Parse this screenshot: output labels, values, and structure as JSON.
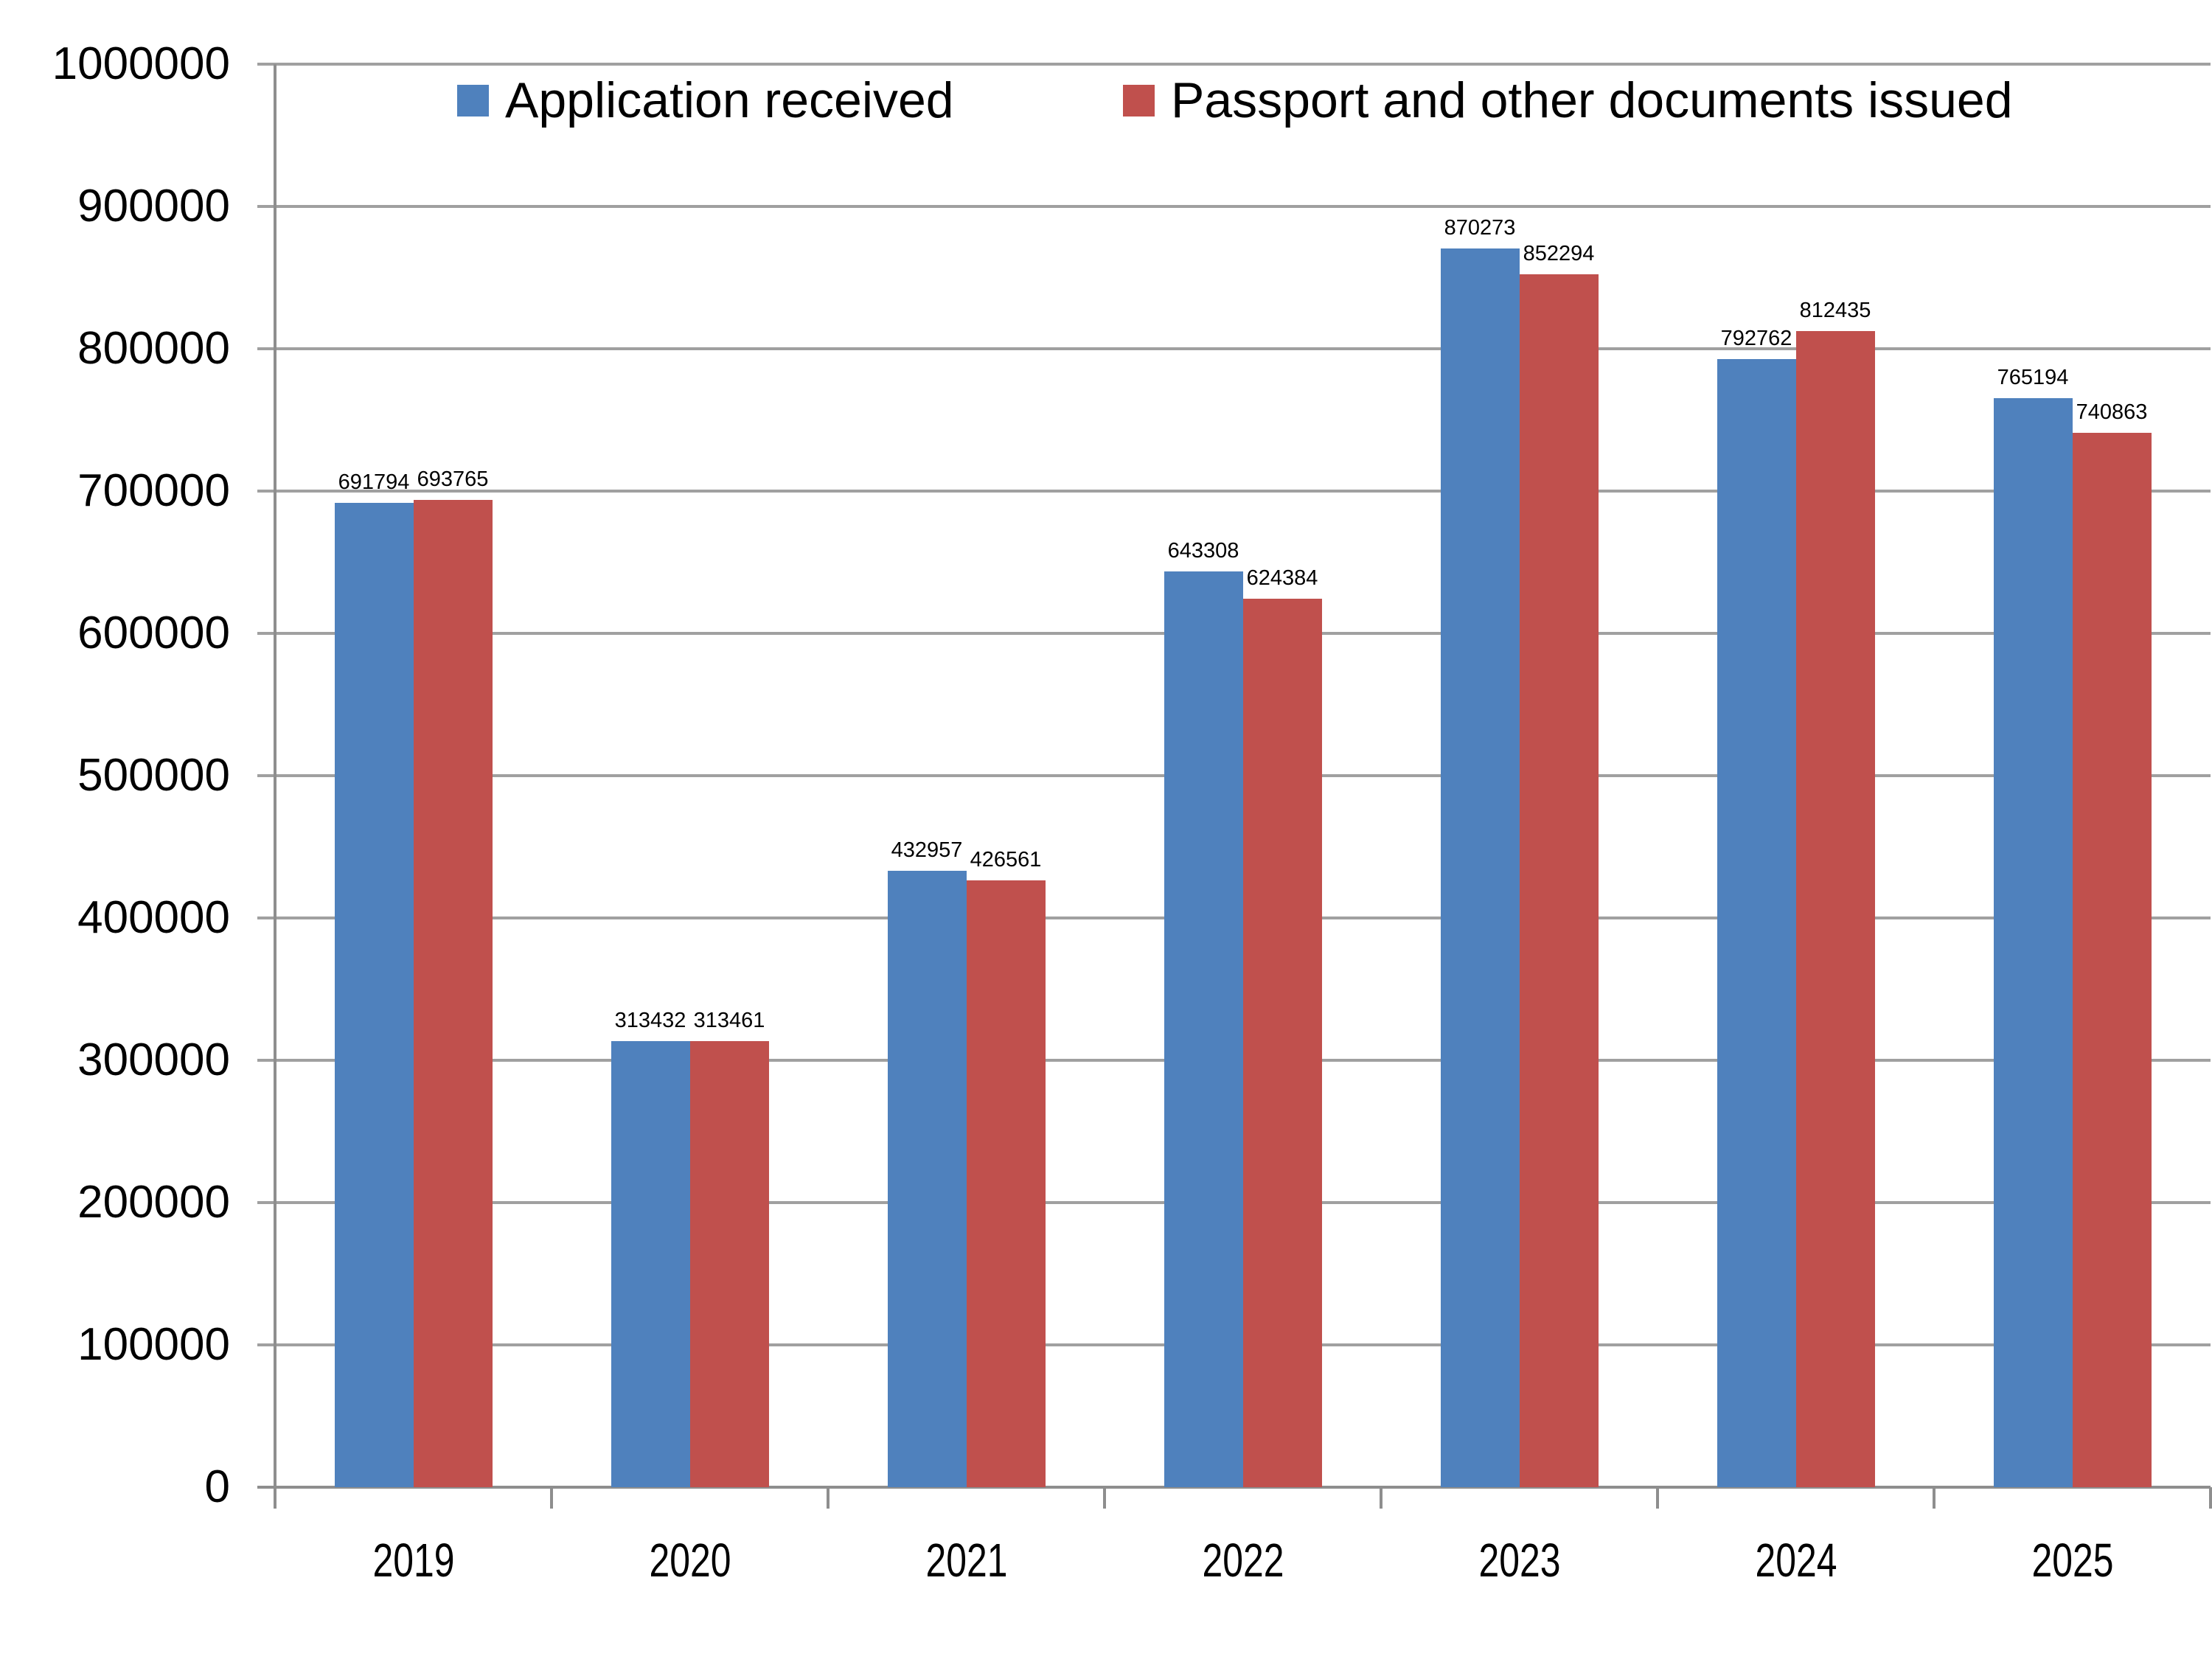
{
  "chart_data": {
    "type": "bar",
    "title": "",
    "xlabel": "",
    "ylabel": "",
    "categories": [
      "2019",
      "2020",
      "2021",
      "2022",
      "2023",
      "2024",
      "2025"
    ],
    "series": [
      {
        "name": "Application received",
        "slug": "application-received",
        "color": "#4F81BD",
        "values": [
          691794,
          313432,
          432957,
          643308,
          870273,
          792762,
          765194
        ]
      },
      {
        "name": "Passport and other documents issued",
        "slug": "passport-and-other-documents-issued",
        "color": "#C0504D",
        "values": [
          693765,
          313461,
          426561,
          624384,
          852294,
          812435,
          740863
        ]
      }
    ],
    "data_labels": [
      [
        "691794",
        "693765"
      ],
      [
        "313432",
        "313461"
      ],
      [
        "432957",
        "426561"
      ],
      [
        "643308",
        "624384"
      ],
      [
        "870273",
        "852294"
      ],
      [
        "792762",
        "812435"
      ],
      [
        "765194",
        "740863"
      ]
    ],
    "ylim": [
      0,
      1000000
    ],
    "y_tick_step": 100000,
    "y_tick_labels": [
      "0",
      "100000",
      "200000",
      "300000",
      "400000",
      "500000",
      "600000",
      "700000",
      "800000",
      "900000",
      "1000000"
    ],
    "grid": true,
    "legend_position": "top-inside",
    "colors": {
      "gridline": "#A0A0A0",
      "axis": "#8E8E8E",
      "text": "#000000",
      "background": "#FFFFFF"
    }
  }
}
